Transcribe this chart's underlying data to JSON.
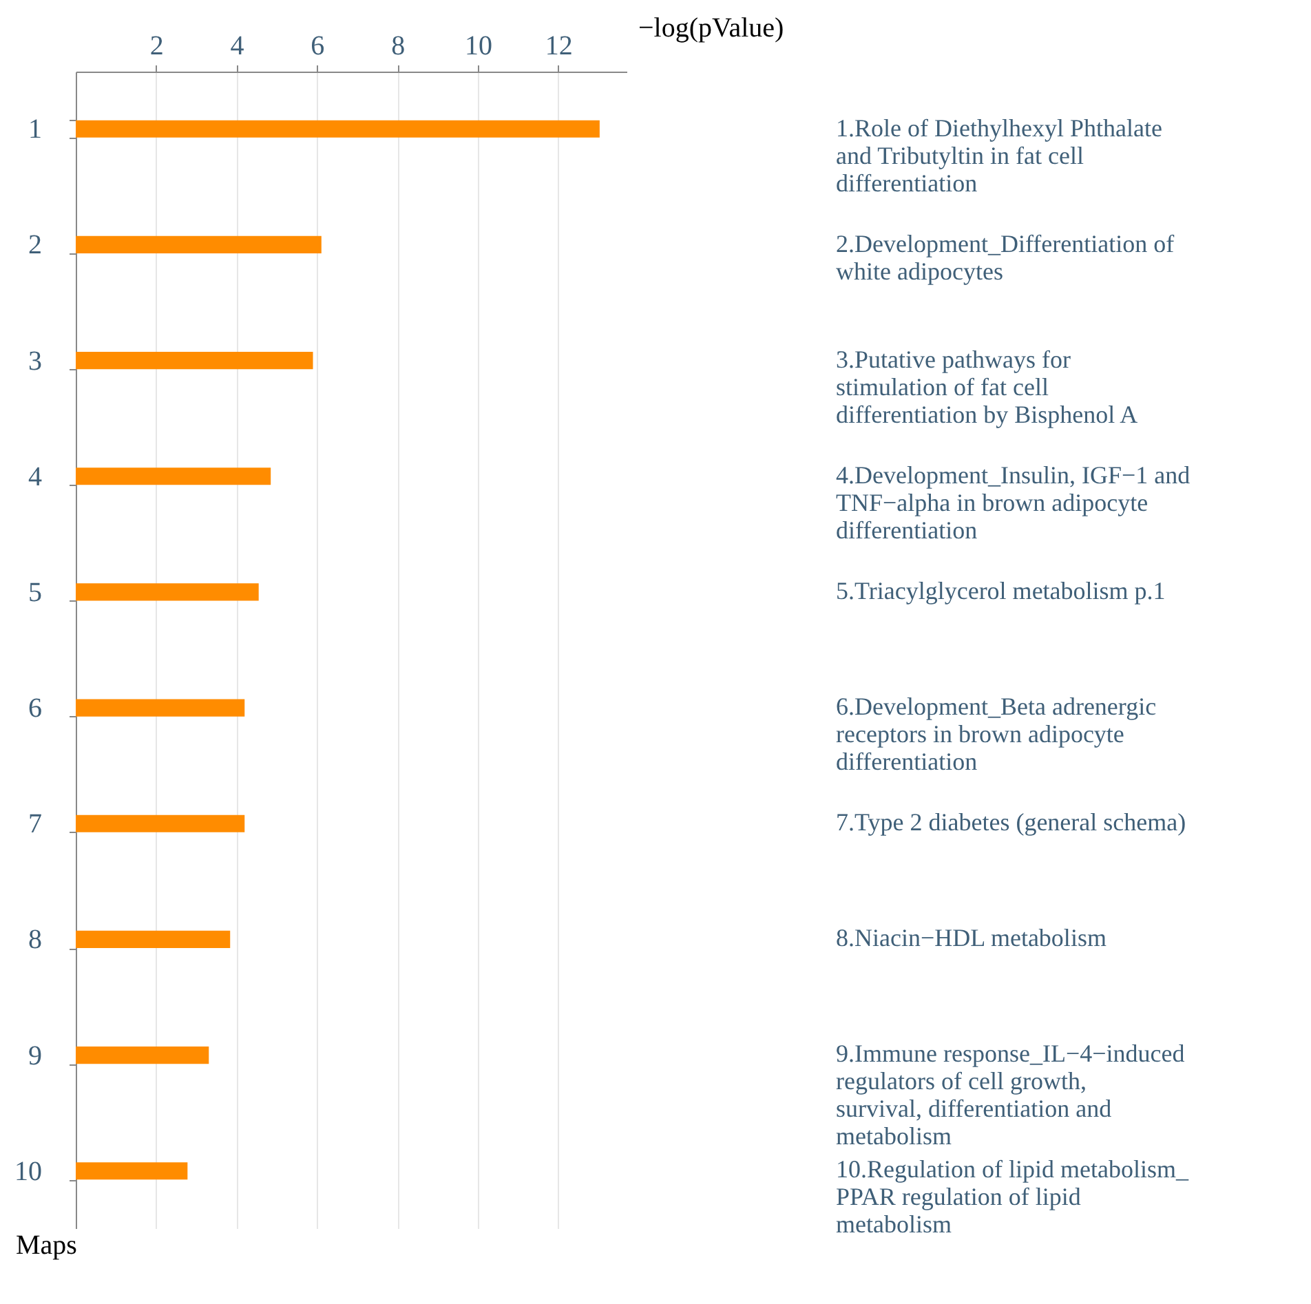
{
  "chart_data": {
    "type": "bar",
    "orientation": "horizontal",
    "xlabel": "−log(pValue)",
    "ylabel": "Maps",
    "categories": [
      "1",
      "2",
      "3",
      "4",
      "5",
      "6",
      "7",
      "8",
      "9",
      "10"
    ],
    "values": [
      13.03,
      6.11,
      5.9,
      4.85,
      4.55,
      4.2,
      4.2,
      3.84,
      3.31,
      2.78
    ],
    "color": "#ff8c00",
    "xlim": [
      0,
      13.7
    ],
    "xticks": [
      2,
      4,
      6,
      8,
      10,
      12
    ],
    "grid": "x",
    "annotations": [
      "1.Role of Diethylhexyl Phthalate and Tributyltin in fat cell differentiation",
      "2.Development_Differentiation of white adipocytes",
      "3.Putative pathways for stimulation of fat cell differentiation by Bisphenol A",
      "4.Development_Insulin, IGF−1 and TNF−alpha in brown adipocyte differentiation",
      "5.Triacylglycerol metabolism p.1",
      "6.Development_Beta adrenergic receptors in brown adipocyte differentiation",
      "7.Type 2 diabetes (general schema)",
      "8.Niacin−HDL metabolism",
      "9.Immune response_IL−4−induced regulators of cell growth, survival, differentiation and metabolism",
      "10.Regulation of lipid metabolism_ PPAR regulation of lipid metabolism"
    ]
  }
}
